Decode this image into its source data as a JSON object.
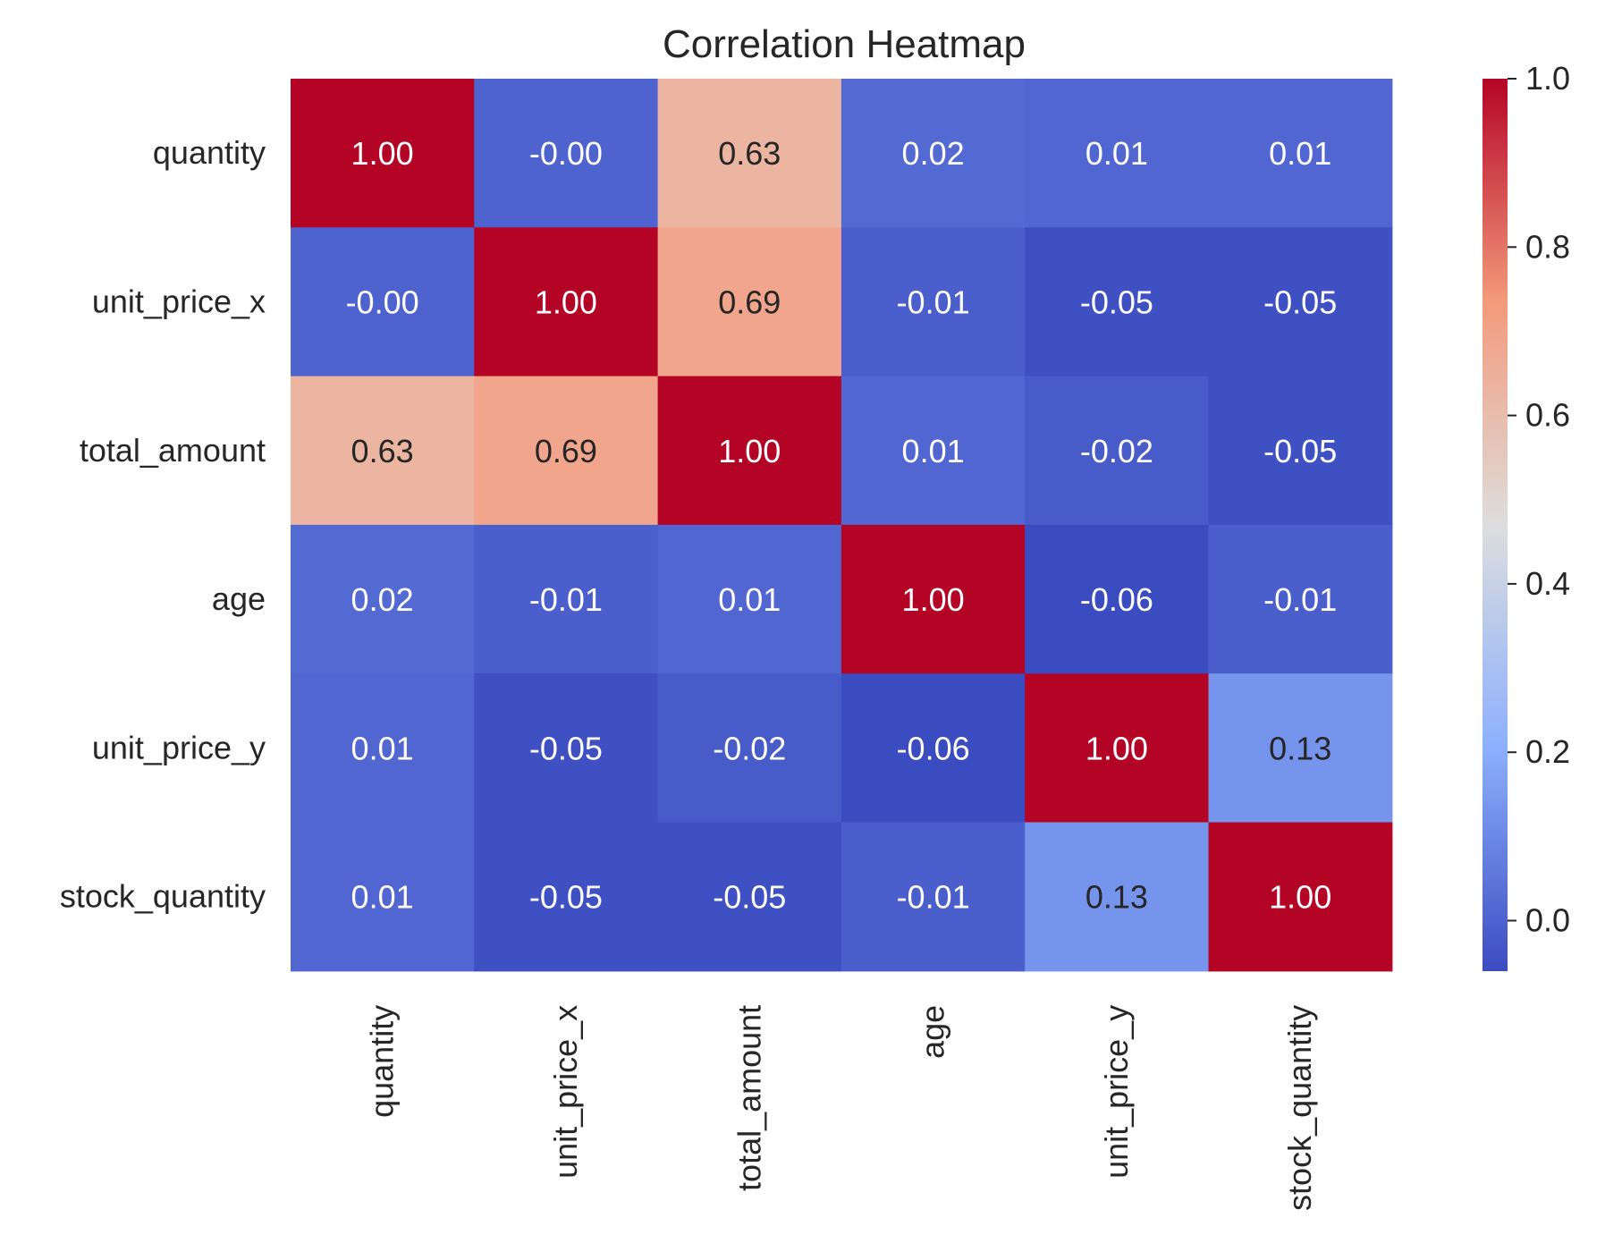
{
  "chart_data": {
    "type": "heatmap",
    "title": "Correlation Heatmap",
    "xlabel": "",
    "ylabel": "",
    "rows": [
      "quantity",
      "unit_price_x",
      "total_amount",
      "age",
      "unit_price_y",
      "stock_quantity"
    ],
    "columns": [
      "quantity",
      "unit_price_x",
      "total_amount",
      "age",
      "unit_price_y",
      "stock_quantity"
    ],
    "values": [
      [
        1.0,
        -0.0,
        0.63,
        0.02,
        0.01,
        0.01
      ],
      [
        -0.0,
        1.0,
        0.69,
        -0.01,
        -0.05,
        -0.05
      ],
      [
        0.63,
        0.69,
        1.0,
        0.01,
        -0.02,
        -0.05
      ],
      [
        0.02,
        -0.01,
        0.01,
        1.0,
        -0.06,
        -0.01
      ],
      [
        0.01,
        -0.05,
        -0.02,
        -0.06,
        1.0,
        0.13
      ],
      [
        0.01,
        -0.05,
        -0.05,
        -0.01,
        0.13,
        1.0
      ]
    ],
    "cell_labels": [
      [
        "1.00",
        "-0.00",
        "0.63",
        "0.02",
        "0.01",
        "0.01"
      ],
      [
        "-0.00",
        "1.00",
        "0.69",
        "-0.01",
        "-0.05",
        "-0.05"
      ],
      [
        "0.63",
        "0.69",
        "1.00",
        "0.01",
        "-0.02",
        "-0.05"
      ],
      [
        "0.02",
        "-0.01",
        "0.01",
        "1.00",
        "-0.06",
        "-0.01"
      ],
      [
        "0.01",
        "-0.05",
        "-0.02",
        "-0.06",
        "1.00",
        "0.13"
      ],
      [
        "0.01",
        "-0.05",
        "-0.05",
        "-0.01",
        "0.13",
        "1.00"
      ]
    ],
    "colormap": "coolwarm",
    "vmin": -0.06,
    "vmax": 1.0,
    "colorbar": {
      "placement": "right",
      "ticks": [
        0.0,
        0.2,
        0.4,
        0.6,
        0.8,
        1.0
      ],
      "tick_labels": [
        "0.0",
        "0.2",
        "0.4",
        "0.6",
        "0.8",
        "1.0"
      ]
    },
    "grid": false
  }
}
